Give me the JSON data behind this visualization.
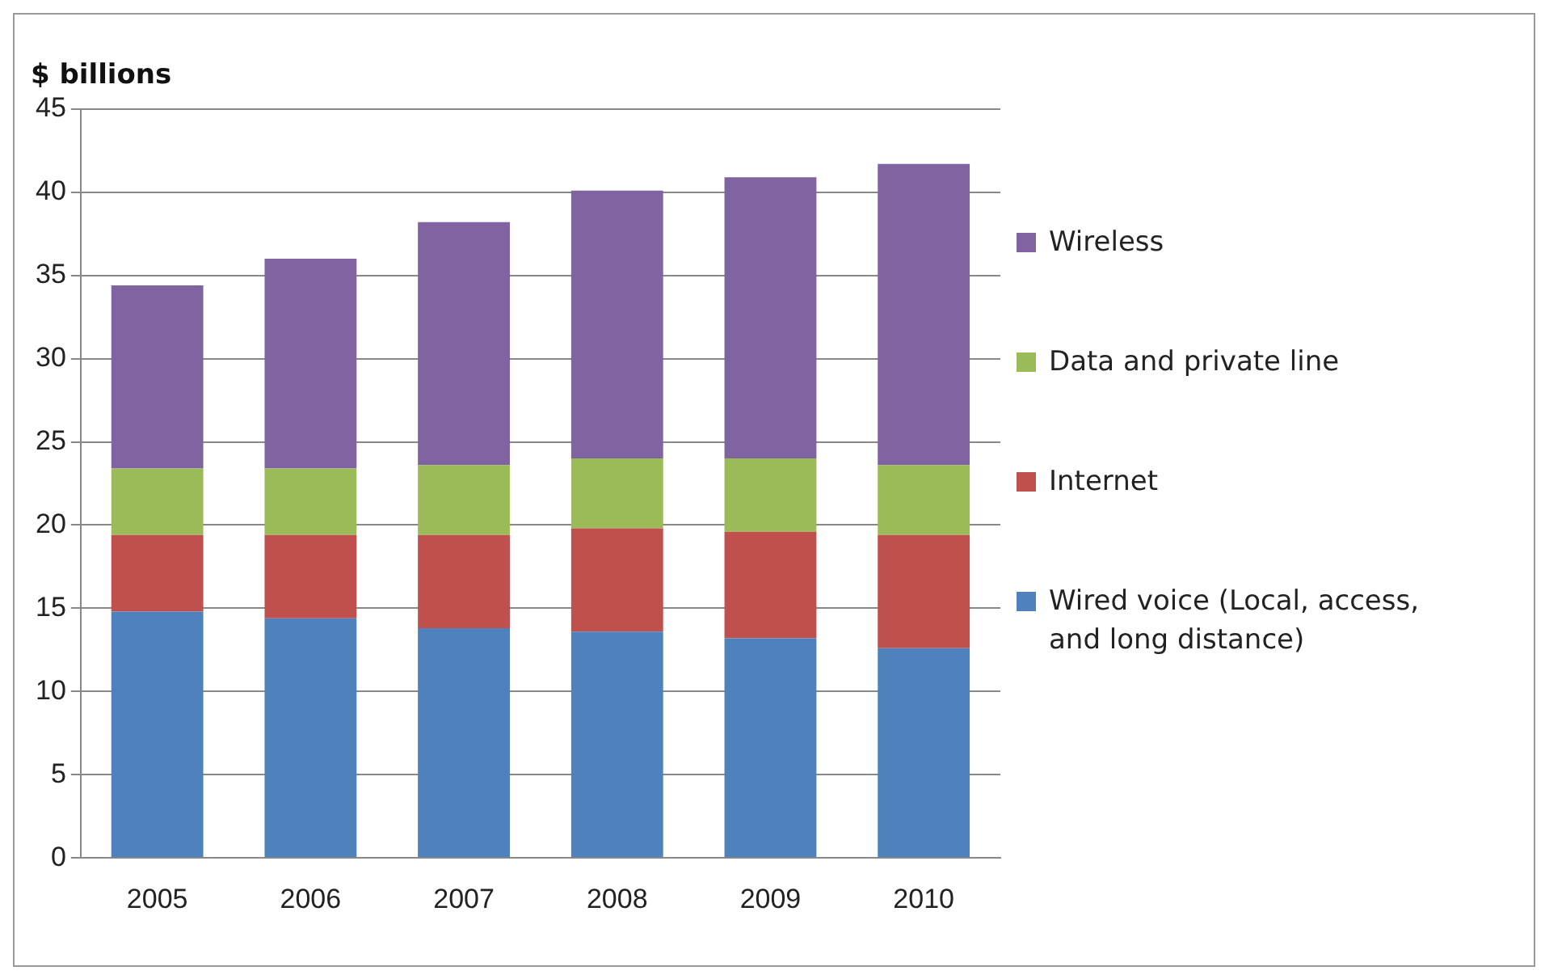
{
  "chart_data": {
    "type": "bar",
    "stacked": true,
    "ylabel": "$ billions",
    "categories": [
      "2005",
      "2006",
      "2007",
      "2008",
      "2009",
      "2010"
    ],
    "series": [
      {
        "name": "Wired voice (Local, access, and long distance)",
        "color": "#4f81bd",
        "values": [
          14.8,
          14.4,
          13.8,
          13.6,
          13.2,
          12.6
        ]
      },
      {
        "name": "Internet",
        "color": "#c0504d",
        "values": [
          4.6,
          5.0,
          5.6,
          6.2,
          6.4,
          6.8
        ]
      },
      {
        "name": "Data and private line",
        "color": "#9bbb59",
        "values": [
          4.0,
          4.0,
          4.2,
          4.2,
          4.4,
          4.2
        ]
      },
      {
        "name": "Wireless",
        "color": "#8064a2",
        "values": [
          11.0,
          12.6,
          14.6,
          16.1,
          16.9,
          18.1
        ]
      }
    ],
    "ylim": [
      0,
      45
    ],
    "yticks": [
      0,
      5,
      10,
      15,
      20,
      25,
      30,
      35,
      40,
      45
    ],
    "grid": "y",
    "legend": "right"
  }
}
